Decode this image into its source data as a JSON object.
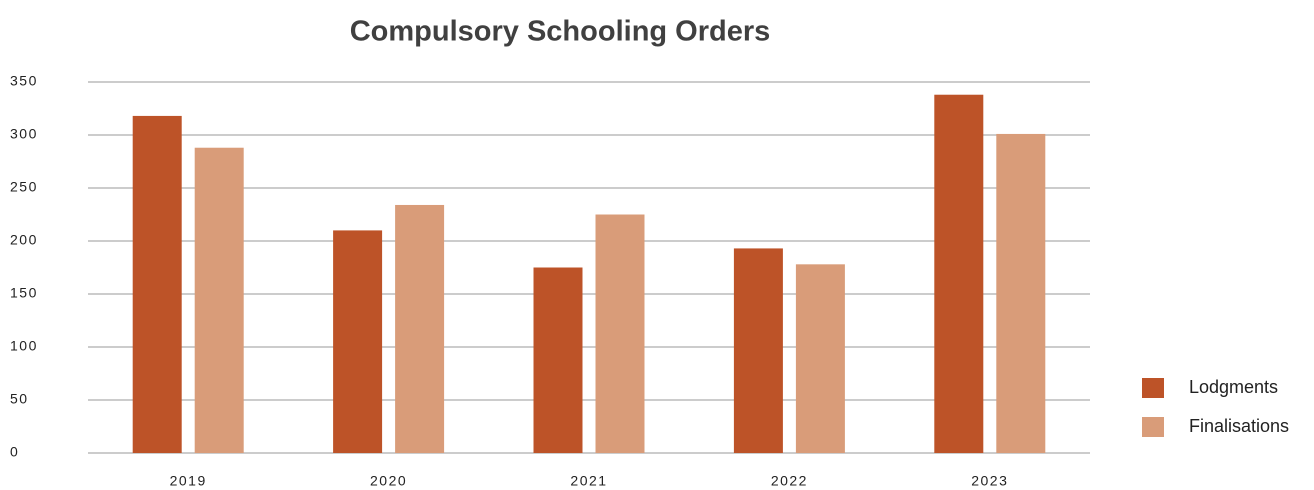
{
  "chart_data": {
    "type": "bar",
    "title": "Compulsory Schooling Orders",
    "categories": [
      "2019",
      "2020",
      "2021",
      "2022",
      "2023"
    ],
    "series": [
      {
        "name": "Lodgments",
        "color": "#bd5328",
        "values": [
          318,
          210,
          175,
          193,
          338
        ]
      },
      {
        "name": "Finalisations",
        "color": "#d99c79",
        "values": [
          288,
          234,
          225,
          178,
          301
        ]
      }
    ],
    "ylim": [
      0,
      350
    ],
    "yticks": [
      0,
      50,
      100,
      150,
      200,
      250,
      300,
      350
    ],
    "grid": true,
    "legend": "right"
  }
}
